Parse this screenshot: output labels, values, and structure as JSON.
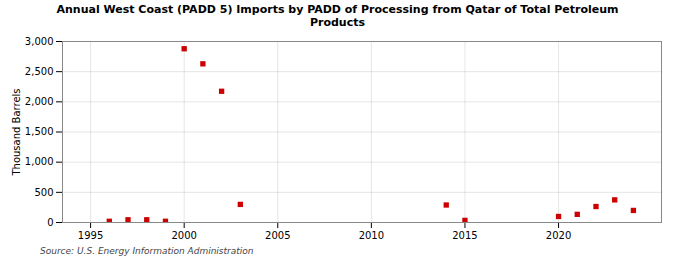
{
  "chart_data": {
    "type": "scatter",
    "title": "Annual West Coast (PADD 5) Imports by PADD of Processing from Qatar of Total Petroleum\nProducts",
    "ylabel": "Thousand Barrels",
    "source": "Source: U.S. Energy Information Administration",
    "x": [
      1996,
      1997,
      1998,
      1999,
      2000,
      2001,
      2002,
      2003,
      2014,
      2015,
      2020,
      2021,
      2022,
      2023,
      2024
    ],
    "values": [
      20,
      45,
      45,
      20,
      2880,
      2630,
      2175,
      300,
      290,
      35,
      100,
      135,
      265,
      375,
      200
    ],
    "color": "#cc0000",
    "marker": "square",
    "xlim": [
      1993.5,
      2025.5
    ],
    "ylim": [
      0,
      3000
    ],
    "xticks": [
      1995,
      2000,
      2005,
      2010,
      2015,
      2020
    ],
    "yticks": [
      0,
      500,
      {
        "value": 1000,
        "label": "1,000"
      },
      {
        "value": 1500,
        "label": "1,500"
      },
      {
        "value": 2000,
        "label": "2,000"
      },
      {
        "value": 2500,
        "label": "2,500"
      },
      {
        "value": 3000,
        "label": "3,000"
      }
    ],
    "grid": true
  }
}
